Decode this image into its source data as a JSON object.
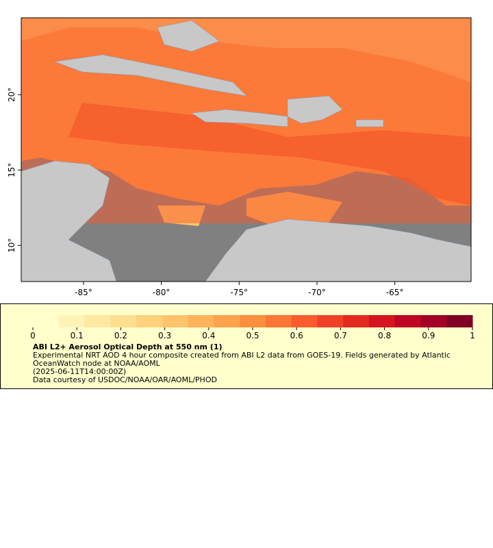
{
  "map": {
    "xlim": [
      -89,
      -60.1
    ],
    "ylim": [
      7.6,
      25.1
    ],
    "xticks": [
      {
        "value": -85,
        "label": "-85°"
      },
      {
        "value": -80,
        "label": "-80°"
      },
      {
        "value": -75,
        "label": "-75°"
      },
      {
        "value": -70,
        "label": "-70°"
      },
      {
        "value": -65,
        "label": "-65°"
      }
    ],
    "yticks": [
      {
        "value": 10,
        "label": "10°"
      },
      {
        "value": 15,
        "label": "15°"
      },
      {
        "value": 20,
        "label": "20°"
      }
    ]
  },
  "colorbar": {
    "lim": [
      0,
      1
    ],
    "ticks": [
      0,
      0.1,
      0.2,
      0.3,
      0.4,
      0.5,
      0.6,
      0.7,
      0.8,
      0.9,
      1
    ],
    "colors": [
      "#ffffcc",
      "#fff3b8",
      "#ffe9a3",
      "#fedf8f",
      "#fed27d",
      "#fec46c",
      "#feb35b",
      "#fea24d",
      "#fd8f3f",
      "#fc7635",
      "#fa5c2e",
      "#f04128",
      "#e32a21",
      "#d4151f",
      "#bf0526",
      "#a30026",
      "#800026"
    ]
  },
  "legend": {
    "title": "ABI L2+ Aerosol Optical Depth at 550 nm (1)",
    "lines": [
      "Experimental NRT AOD 4 hour composite created from ABI L2 data from GOES-19. Fields generated by Atlantic",
      "OceanWatch node at NOAA/AOML",
      "(2025-06-11T14:00:00Z)",
      "Data courtesy of USDOC/NOAA/OAR/AOML/PHOD"
    ]
  }
}
